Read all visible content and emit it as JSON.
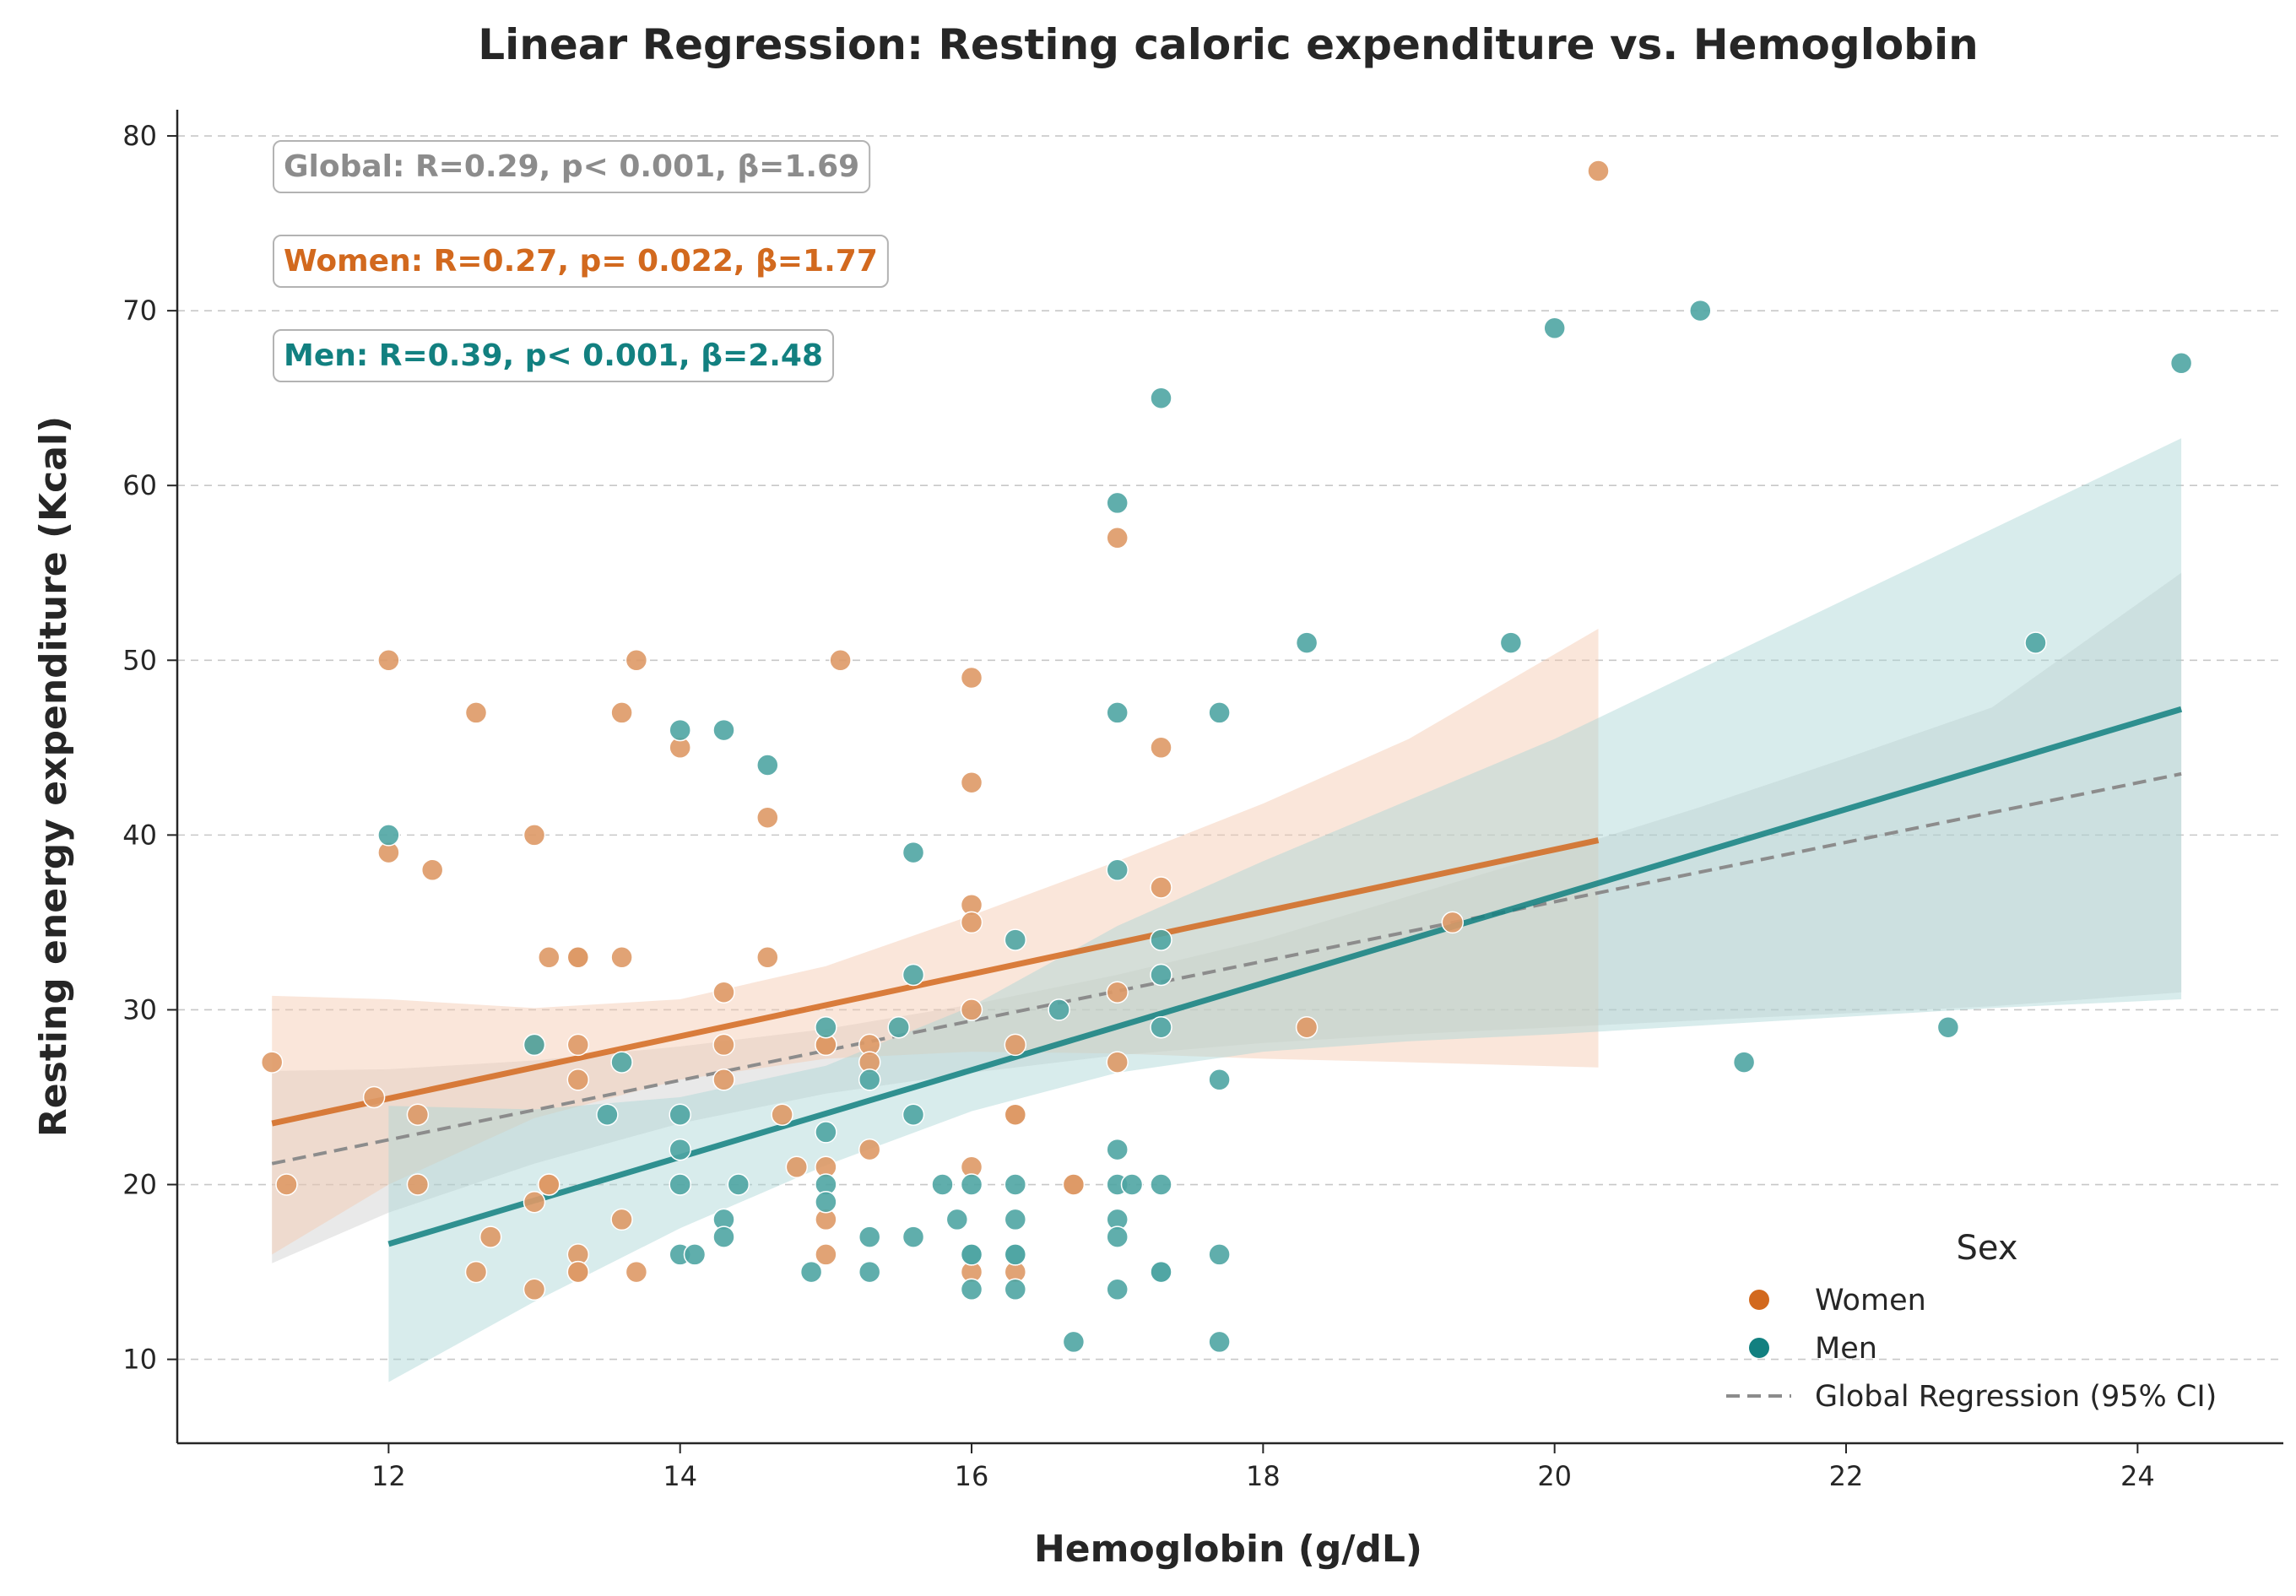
{
  "chart_data": {
    "type": "scatter",
    "title": "Linear Regression: Resting caloric expenditure vs. Hemoglobin",
    "xlabel": "Hemoglobin (g/dL)",
    "ylabel": "Resting energy expenditure (Kcal)",
    "xlim": [
      10.55,
      25.0
    ],
    "ylim": [
      5.2,
      81.5
    ],
    "x_ticks": [
      12,
      14,
      16,
      18,
      20,
      22,
      24
    ],
    "y_ticks": [
      10,
      20,
      30,
      40,
      50,
      60,
      70,
      80
    ],
    "grid": "y-dashed",
    "colors": {
      "women": "#d2691e",
      "women_point": "#de9966",
      "women_band": "#f3c8ad",
      "men": "#128080",
      "men_point": "#4fa5a3",
      "men_band": "#a9d5d4",
      "global": "#8c8c8c",
      "global_band": "#bfbfbf",
      "text": "#262626"
    },
    "annotations": [
      {
        "key": "global",
        "text": "Global: R=0.29, p< 0.001, β=1.69"
      },
      {
        "key": "women",
        "text": "Women: R=0.27, p= 0.022, β=1.77"
      },
      {
        "key": "men",
        "text": "Men: R=0.39, p< 0.001, β=2.48"
      }
    ],
    "legend": {
      "title": "Sex",
      "position": "lower-right",
      "entries": [
        "Women",
        "Men",
        "Global Regression (95% CI)"
      ]
    },
    "series": [
      {
        "key": "women",
        "name": "Women",
        "points": [
          [
            11.2,
            27
          ],
          [
            11.3,
            20
          ],
          [
            11.9,
            25
          ],
          [
            12,
            50
          ],
          [
            12,
            39
          ],
          [
            12.2,
            24
          ],
          [
            12.2,
            20
          ],
          [
            12.3,
            38
          ],
          [
            12.6,
            47
          ],
          [
            12.6,
            15
          ],
          [
            12.7,
            17
          ],
          [
            13,
            40
          ],
          [
            13,
            28
          ],
          [
            13,
            19
          ],
          [
            13,
            14
          ],
          [
            13.1,
            33
          ],
          [
            13.1,
            20
          ],
          [
            13.1,
            20
          ],
          [
            13.3,
            33
          ],
          [
            13.3,
            33
          ],
          [
            13.3,
            28
          ],
          [
            13.3,
            26
          ],
          [
            13.3,
            16
          ],
          [
            13.3,
            15
          ],
          [
            13.3,
            15
          ],
          [
            13.6,
            47
          ],
          [
            13.6,
            33
          ],
          [
            13.6,
            18
          ],
          [
            13.7,
            50
          ],
          [
            13.7,
            15
          ],
          [
            14,
            45
          ],
          [
            14.3,
            31
          ],
          [
            14.3,
            28
          ],
          [
            14.3,
            26
          ],
          [
            14.6,
            41
          ],
          [
            14.6,
            33
          ],
          [
            14.7,
            24
          ],
          [
            14.8,
            21
          ],
          [
            15,
            28
          ],
          [
            15,
            28
          ],
          [
            15,
            21
          ],
          [
            15,
            18
          ],
          [
            15,
            16
          ],
          [
            15.1,
            50
          ],
          [
            15.3,
            28
          ],
          [
            15.3,
            22
          ],
          [
            15.3,
            27
          ],
          [
            16,
            49
          ],
          [
            16,
            43
          ],
          [
            16,
            36
          ],
          [
            16,
            35
          ],
          [
            16,
            30
          ],
          [
            16,
            21
          ],
          [
            16,
            15
          ],
          [
            16.3,
            28
          ],
          [
            16.3,
            24
          ],
          [
            16.3,
            24
          ],
          [
            16.3,
            15
          ],
          [
            16.7,
            20
          ],
          [
            16.7,
            20
          ],
          [
            17,
            57
          ],
          [
            17,
            31
          ],
          [
            17,
            27
          ],
          [
            17.3,
            45
          ],
          [
            17.3,
            37
          ],
          [
            18.3,
            29
          ],
          [
            19.3,
            35
          ],
          [
            20.3,
            78
          ]
        ],
        "fit": {
          "x": [
            11.2,
            20.3
          ],
          "y": [
            23.5,
            39.7
          ]
        },
        "band": {
          "x": [
            11.2,
            12,
            13,
            14,
            15,
            16,
            17,
            18,
            19,
            20.3
          ],
          "upper": [
            30.8,
            30.6,
            30.1,
            30.6,
            32.5,
            35.4,
            38.5,
            41.8,
            45.5,
            51.8
          ],
          "lower": [
            16.0,
            20.0,
            23.8,
            26.0,
            27.2,
            27.6,
            27.5,
            27.2,
            27.0,
            26.7
          ]
        }
      },
      {
        "key": "men",
        "name": "Men",
        "points": [
          [
            12,
            40
          ],
          [
            13,
            28
          ],
          [
            13.5,
            24
          ],
          [
            13.6,
            27
          ],
          [
            14,
            46
          ],
          [
            14,
            24
          ],
          [
            14,
            22
          ],
          [
            14,
            20
          ],
          [
            14,
            16
          ],
          [
            14.1,
            16
          ],
          [
            14.3,
            46
          ],
          [
            14.3,
            18
          ],
          [
            14.3,
            17
          ],
          [
            14.4,
            20
          ],
          [
            14.6,
            44
          ],
          [
            14.9,
            15
          ],
          [
            15,
            29
          ],
          [
            15,
            23
          ],
          [
            15,
            20
          ],
          [
            15,
            19
          ],
          [
            15.3,
            26
          ],
          [
            15.3,
            17
          ],
          [
            15.3,
            15
          ],
          [
            15.5,
            29
          ],
          [
            15.6,
            39
          ],
          [
            15.6,
            32
          ],
          [
            15.6,
            24
          ],
          [
            15.6,
            17
          ],
          [
            15.8,
            20
          ],
          [
            15.9,
            18
          ],
          [
            16,
            20
          ],
          [
            16,
            16
          ],
          [
            16,
            16
          ],
          [
            16,
            14
          ],
          [
            16.3,
            34
          ],
          [
            16.3,
            20
          ],
          [
            16.3,
            18
          ],
          [
            16.3,
            16
          ],
          [
            16.3,
            16
          ],
          [
            16.3,
            14
          ],
          [
            16.6,
            30
          ],
          [
            16.7,
            11
          ],
          [
            17,
            59
          ],
          [
            17,
            47
          ],
          [
            17,
            38
          ],
          [
            17,
            22
          ],
          [
            17,
            20
          ],
          [
            17,
            18
          ],
          [
            17,
            17
          ],
          [
            17,
            14
          ],
          [
            17.1,
            20
          ],
          [
            17.3,
            65
          ],
          [
            17.3,
            34
          ],
          [
            17.3,
            32
          ],
          [
            17.3,
            29
          ],
          [
            17.3,
            20
          ],
          [
            17.3,
            15
          ],
          [
            17.3,
            15
          ],
          [
            17.7,
            47
          ],
          [
            17.7,
            26
          ],
          [
            17.7,
            16
          ],
          [
            17.7,
            11
          ],
          [
            18.3,
            51
          ],
          [
            19.7,
            51
          ],
          [
            20,
            69
          ],
          [
            21,
            70
          ],
          [
            21.3,
            27
          ],
          [
            22.7,
            29
          ],
          [
            23.3,
            51
          ],
          [
            24.3,
            67
          ]
        ],
        "fit": {
          "x": [
            12,
            24.3
          ],
          "y": [
            16.6,
            47.2
          ]
        },
        "band": {
          "x": [
            12,
            13,
            14,
            15,
            16,
            17,
            18,
            19,
            20,
            21,
            22,
            23,
            24.3
          ],
          "upper": [
            24.5,
            24.3,
            25.0,
            26.8,
            30.2,
            34.8,
            38.5,
            42.0,
            45.5,
            49.5,
            53.5,
            57.5,
            62.7
          ],
          "lower": [
            8.7,
            13.3,
            17.5,
            21.1,
            24.2,
            26.4,
            27.6,
            28.2,
            28.6,
            29.1,
            29.6,
            30.1,
            30.6
          ]
        }
      }
    ],
    "global_fit": {
      "x": [
        11.2,
        24.3
      ],
      "y": [
        21.2,
        43.5
      ],
      "band": {
        "x": [
          11.2,
          12,
          13,
          14,
          15,
          16,
          17,
          18,
          19,
          20,
          21,
          22,
          23,
          24.3
        ],
        "upper": [
          26.5,
          26.6,
          27.1,
          27.9,
          28.9,
          30.3,
          32.0,
          34.0,
          36.5,
          39.0,
          41.6,
          44.4,
          47.3,
          55.0
        ],
        "lower": [
          15.5,
          18.4,
          21.2,
          23.5,
          25.2,
          26.4,
          27.4,
          28.1,
          28.6,
          29.0,
          29.4,
          29.8,
          30.2,
          31.0
        ]
      }
    }
  }
}
